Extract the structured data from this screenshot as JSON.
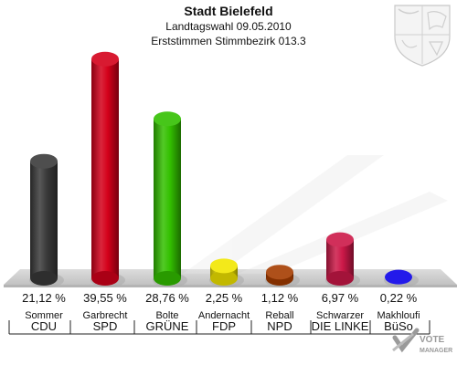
{
  "header": {
    "title": "Stadt Bielefeld",
    "subtitle1": "Landtagswahl 09.05.2010",
    "subtitle2": "Erststimmen Stimmbezirk 013.3"
  },
  "watermark": {
    "text": "VOTE MANAGER",
    "line1": "VOTE",
    "line2": "MANAGER",
    "icon": "vote-check-icon"
  },
  "crest": {
    "icon": "nrw-coat-of-arms-icon"
  },
  "chart_data": {
    "type": "bar",
    "title": "Stadt Bielefeld",
    "xlabel": "",
    "ylabel": "",
    "ylim": [
      0,
      40
    ],
    "grid": false,
    "legend": "none",
    "categories": [
      "Sommer / CDU",
      "Garbrecht / SPD",
      "Bolte / GRÜNE",
      "Andernacht / FDP",
      "Reball / NPD",
      "Schwarzer / DIE LINKE",
      "Makhloufi / BüSo"
    ],
    "candidates": [
      "Sommer",
      "Garbrecht",
      "Bolte",
      "Andernacht",
      "Reball",
      "Schwarzer",
      "Makhloufi"
    ],
    "parties": [
      "CDU",
      "SPD",
      "GRÜNE",
      "FDP",
      "NPD",
      "DIE LINKE",
      "BüSo"
    ],
    "values": [
      21.12,
      39.55,
      28.76,
      2.25,
      1.12,
      6.97,
      0.22
    ],
    "labels": [
      "21,12 %",
      "39,55 %",
      "28,76 %",
      "2,25 %",
      "1,12 %",
      "6,97 %",
      "0,22 %"
    ],
    "colors": [
      "#3a3a3a",
      "#d4001a",
      "#33c000",
      "#f2e600",
      "#a53c00",
      "#cc1848",
      "#0a00e8"
    ]
  }
}
